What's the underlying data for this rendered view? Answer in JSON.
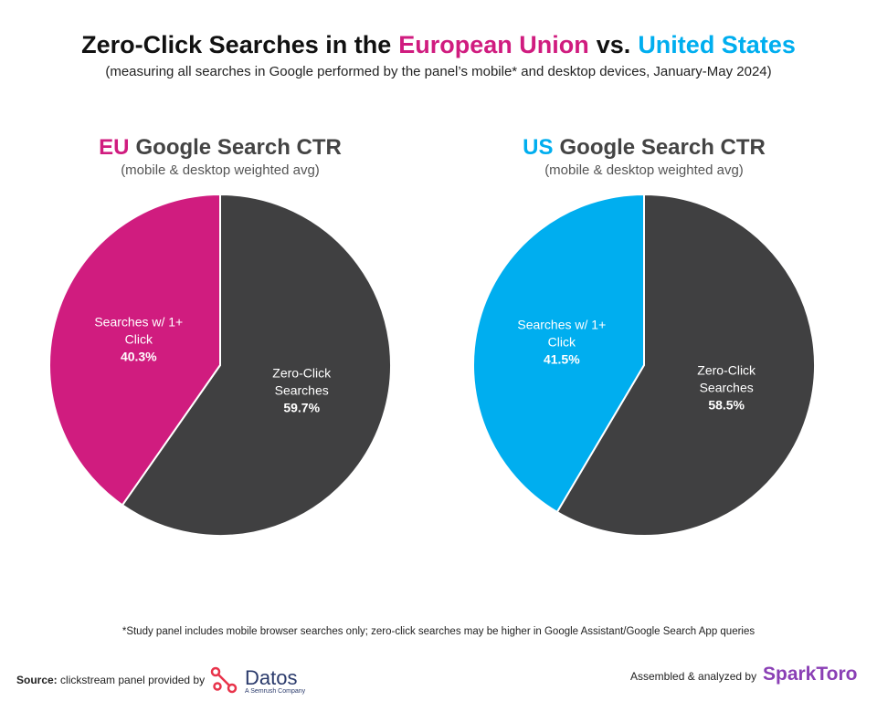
{
  "header": {
    "title_parts": [
      "Zero-Click Searches in the",
      "European Union",
      "vs.",
      "United States"
    ],
    "subtitle": "(measuring all searches in Google performed by the panel’s mobile* and desktop devices, January-May 2024)"
  },
  "chart_data": [
    {
      "type": "pie",
      "title_prefix": "EU",
      "title": "Google Search CTR",
      "subtitle": "(mobile & desktop weighted avg)",
      "categories": [
        "Zero-Click Searches",
        "Searches w/ 1+ Click"
      ],
      "values": [
        59.7,
        40.3
      ],
      "value_labels": [
        "59.7%",
        "40.3%"
      ],
      "colors": [
        "#404041",
        "#d01c7f"
      ]
    },
    {
      "type": "pie",
      "title_prefix": "US",
      "title": "Google Search CTR",
      "subtitle": "(mobile & desktop weighted avg)",
      "categories": [
        "Zero-Click Searches",
        "Searches w/ 1+ Click"
      ],
      "values": [
        58.5,
        41.5
      ],
      "value_labels": [
        "58.5%",
        "41.5%"
      ],
      "colors": [
        "#404041",
        "#00aeef"
      ]
    }
  ],
  "footer": {
    "note": "*Study panel includes mobile browser searches only; zero-click searches may be higher in Google Assistant/Google Search App queries",
    "source_label": "Source:",
    "source": "clickstream panel provided by",
    "datos": "Datos",
    "datos_sub": "A Semrush Company",
    "assembled": "Assembled & analyzed by",
    "sparktoro": "SparkToro"
  }
}
